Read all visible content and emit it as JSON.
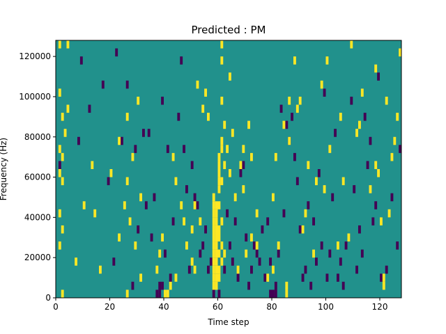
{
  "chart_data": {
    "type": "heatmap",
    "title": "Predicted : PM",
    "xlabel": "Time step",
    "ylabel": "Frequency (Hz)",
    "xlim": [
      0,
      128
    ],
    "ylim": [
      0,
      128000
    ],
    "xticks": [
      0,
      20,
      40,
      60,
      80,
      100,
      120
    ],
    "xtick_labels": [
      "0",
      "20",
      "40",
      "60",
      "80",
      "100",
      "120"
    ],
    "yticks": [
      0,
      20000,
      40000,
      60000,
      80000,
      100000,
      120000
    ],
    "ytick_labels": [
      "0",
      "20000",
      "40000",
      "60000",
      "80000",
      "100000",
      "120000"
    ],
    "grid": false,
    "colors": {
      "background": "#21918c",
      "low": "#440154",
      "high": "#fde725"
    },
    "yellow_cells": [
      [
        2,
        0
      ],
      [
        1,
        31
      ],
      [
        4,
        31
      ],
      [
        1,
        25
      ],
      [
        4,
        23
      ],
      [
        2,
        22
      ],
      [
        3,
        20
      ],
      [
        1,
        18
      ],
      [
        2,
        17
      ],
      [
        1,
        15
      ],
      [
        2,
        14
      ],
      [
        1,
        10
      ],
      [
        2,
        8
      ],
      [
        1,
        6
      ],
      [
        10,
        11
      ],
      [
        7,
        4
      ],
      [
        14,
        10
      ],
      [
        16,
        3
      ],
      [
        13,
        16
      ],
      [
        20,
        15
      ],
      [
        23,
        7
      ],
      [
        23,
        19
      ],
      [
        25,
        11
      ],
      [
        26,
        14
      ],
      [
        26,
        22
      ],
      [
        28,
        17
      ],
      [
        29,
        6
      ],
      [
        27,
        9
      ],
      [
        30,
        24
      ],
      [
        31,
        12
      ],
      [
        31,
        2
      ],
      [
        26,
        0
      ],
      [
        37,
        3
      ],
      [
        38,
        5
      ],
      [
        39,
        7
      ],
      [
        40,
        0
      ],
      [
        41,
        0
      ],
      [
        42,
        1
      ],
      [
        43,
        17
      ],
      [
        44,
        14
      ],
      [
        44,
        2
      ],
      [
        46,
        11
      ],
      [
        47,
        9
      ],
      [
        48,
        6
      ],
      [
        50,
        8
      ],
      [
        50,
        4
      ],
      [
        51,
        3
      ],
      [
        51,
        11
      ],
      [
        52,
        26
      ],
      [
        53,
        9
      ],
      [
        54,
        23
      ],
      [
        55,
        25
      ],
      [
        56,
        22
      ],
      [
        58,
        1
      ],
      [
        58,
        2
      ],
      [
        58,
        3
      ],
      [
        58,
        4
      ],
      [
        58,
        5
      ],
      [
        58,
        6
      ],
      [
        58,
        7
      ],
      [
        58,
        8
      ],
      [
        58,
        9
      ],
      [
        58,
        10
      ],
      [
        58,
        11
      ],
      [
        58,
        12
      ],
      [
        59,
        1
      ],
      [
        59,
        2
      ],
      [
        59,
        3
      ],
      [
        59,
        4
      ],
      [
        59,
        5
      ],
      [
        59,
        6
      ],
      [
        59,
        7
      ],
      [
        59,
        8
      ],
      [
        59,
        9
      ],
      [
        59,
        10
      ],
      [
        59,
        11
      ],
      [
        60,
        2
      ],
      [
        60,
        3
      ],
      [
        60,
        5
      ],
      [
        60,
        7
      ],
      [
        60,
        8
      ],
      [
        60,
        11
      ],
      [
        60,
        13
      ],
      [
        60,
        14
      ],
      [
        60,
        15
      ],
      [
        60,
        16
      ],
      [
        60,
        17
      ],
      [
        61,
        4
      ],
      [
        61,
        6
      ],
      [
        61,
        9
      ],
      [
        61,
        14
      ],
      [
        61,
        18
      ],
      [
        61,
        19
      ],
      [
        61,
        24
      ],
      [
        61,
        31
      ],
      [
        61,
        29
      ],
      [
        62,
        5
      ],
      [
        62,
        16
      ],
      [
        62,
        21
      ],
      [
        63,
        18
      ],
      [
        64,
        15
      ],
      [
        64,
        27
      ],
      [
        65,
        20
      ],
      [
        66,
        12
      ],
      [
        67,
        3
      ],
      [
        68,
        16
      ],
      [
        69,
        18
      ],
      [
        69,
        13
      ],
      [
        70,
        5
      ],
      [
        71,
        21
      ],
      [
        72,
        7
      ],
      [
        72,
        17
      ],
      [
        74,
        10
      ],
      [
        74,
        6
      ],
      [
        78,
        2
      ],
      [
        80,
        3
      ],
      [
        80,
        12
      ],
      [
        81,
        17
      ],
      [
        82,
        6
      ],
      [
        84,
        21
      ],
      [
        85,
        1
      ],
      [
        85,
        0
      ],
      [
        86,
        19
      ],
      [
        86,
        24
      ],
      [
        88,
        29
      ],
      [
        89,
        23
      ],
      [
        90,
        24
      ],
      [
        91,
        8
      ],
      [
        92,
        10
      ],
      [
        93,
        16
      ],
      [
        95,
        5
      ],
      [
        96,
        14
      ],
      [
        98,
        26
      ],
      [
        99,
        13
      ],
      [
        100,
        29
      ],
      [
        101,
        18
      ],
      [
        104,
        6
      ],
      [
        105,
        22
      ],
      [
        106,
        14
      ],
      [
        108,
        7
      ],
      [
        109,
        31
      ],
      [
        111,
        20
      ],
      [
        112,
        21
      ],
      [
        113,
        25
      ],
      [
        116,
        13
      ],
      [
        118,
        16
      ],
      [
        118,
        28
      ],
      [
        119,
        15
      ],
      [
        120,
        9
      ],
      [
        121,
        2
      ],
      [
        121,
        1
      ],
      [
        122,
        24
      ],
      [
        123,
        10
      ],
      [
        124,
        17
      ],
      [
        125,
        19
      ],
      [
        126,
        22
      ],
      [
        127,
        30
      ]
    ],
    "purple_cells": [
      [
        1,
        16
      ],
      [
        8,
        19
      ],
      [
        9,
        29
      ],
      [
        12,
        23
      ],
      [
        17,
        26
      ],
      [
        19,
        14
      ],
      [
        21,
        4
      ],
      [
        22,
        30
      ],
      [
        24,
        19
      ],
      [
        26,
        26
      ],
      [
        28,
        1
      ],
      [
        29,
        18
      ],
      [
        30,
        8
      ],
      [
        32,
        20
      ],
      [
        33,
        11
      ],
      [
        34,
        20
      ],
      [
        35,
        7
      ],
      [
        36,
        12
      ],
      [
        37,
        0
      ],
      [
        38,
        0
      ],
      [
        38,
        1
      ],
      [
        39,
        1
      ],
      [
        39,
        24
      ],
      [
        40,
        5
      ],
      [
        41,
        18
      ],
      [
        42,
        2
      ],
      [
        43,
        9
      ],
      [
        45,
        22
      ],
      [
        46,
        29
      ],
      [
        47,
        18
      ],
      [
        48,
        13
      ],
      [
        49,
        3
      ],
      [
        50,
        16
      ],
      [
        51,
        12
      ],
      [
        52,
        11
      ],
      [
        53,
        5
      ],
      [
        54,
        6
      ],
      [
        55,
        8
      ],
      [
        56,
        3
      ],
      [
        57,
        4
      ],
      [
        58,
        0
      ],
      [
        60,
        0
      ],
      [
        62,
        3
      ],
      [
        63,
        10
      ],
      [
        64,
        6
      ],
      [
        65,
        4
      ],
      [
        66,
        9
      ],
      [
        67,
        2
      ],
      [
        68,
        15
      ],
      [
        69,
        16
      ],
      [
        70,
        7
      ],
      [
        71,
        1
      ],
      [
        72,
        3
      ],
      [
        73,
        6
      ],
      [
        74,
        5
      ],
      [
        75,
        4
      ],
      [
        76,
        8
      ],
      [
        77,
        2
      ],
      [
        78,
        9
      ],
      [
        79,
        4
      ],
      [
        79,
        0
      ],
      [
        80,
        0
      ],
      [
        81,
        1
      ],
      [
        81,
        0
      ],
      [
        82,
        5
      ],
      [
        83,
        23
      ],
      [
        84,
        10
      ],
      [
        85,
        21
      ],
      [
        86,
        19
      ],
      [
        87,
        22
      ],
      [
        88,
        17
      ],
      [
        89,
        14
      ],
      [
        90,
        8
      ],
      [
        91,
        2
      ],
      [
        92,
        3
      ],
      [
        93,
        11
      ],
      [
        94,
        1
      ],
      [
        95,
        9
      ],
      [
        96,
        4
      ],
      [
        97,
        15
      ],
      [
        98,
        6
      ],
      [
        99,
        25
      ],
      [
        100,
        2
      ],
      [
        101,
        5
      ],
      [
        102,
        12
      ],
      [
        103,
        20
      ],
      [
        104,
        2
      ],
      [
        105,
        4
      ],
      [
        106,
        1
      ],
      [
        107,
        6
      ],
      [
        108,
        7
      ],
      [
        109,
        24
      ],
      [
        110,
        13
      ],
      [
        111,
        3
      ],
      [
        112,
        8
      ],
      [
        113,
        5
      ],
      [
        114,
        22
      ],
      [
        115,
        16
      ],
      [
        116,
        19
      ],
      [
        117,
        9
      ],
      [
        118,
        11
      ],
      [
        119,
        27
      ],
      [
        120,
        2
      ],
      [
        122,
        3
      ],
      [
        124,
        12
      ],
      [
        126,
        6
      ],
      [
        127,
        18
      ]
    ]
  }
}
